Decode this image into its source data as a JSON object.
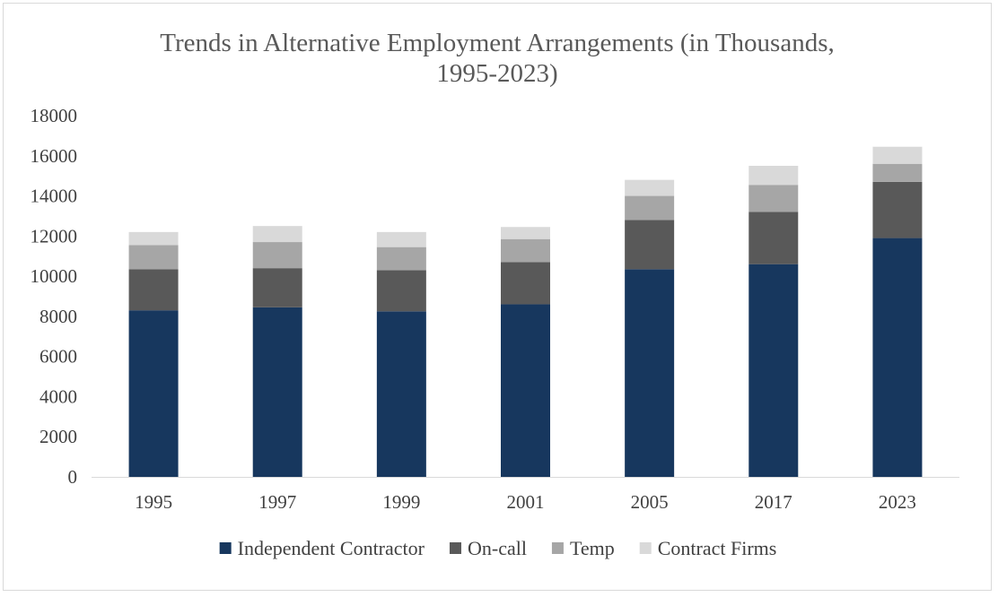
{
  "chart_data": {
    "type": "bar",
    "stacked": true,
    "title": "Trends in Alternative Employment Arrangements (in Thousands, 1995-2023)",
    "title_lines": [
      "Trends in Alternative Employment Arrangements (in Thousands,",
      "1995-2023)"
    ],
    "xlabel": "",
    "ylabel": "",
    "categories": [
      "1995",
      "1997",
      "1999",
      "2001",
      "2005",
      "2017",
      "2023"
    ],
    "ylim": [
      0,
      18000
    ],
    "yticks": [
      0,
      2000,
      4000,
      6000,
      8000,
      10000,
      12000,
      14000,
      16000,
      18000
    ],
    "grid": false,
    "legend_position": "bottom",
    "series": [
      {
        "name": "Independent Contractor",
        "color": "#17375e",
        "values": [
          8300,
          8450,
          8250,
          8600,
          10350,
          10600,
          11900
        ]
      },
      {
        "name": "On-call",
        "color": "#595959",
        "values": [
          2050,
          1950,
          2050,
          2100,
          2450,
          2600,
          2800
        ]
      },
      {
        "name": "Temp",
        "color": "#a6a6a6",
        "values": [
          1200,
          1300,
          1150,
          1150,
          1200,
          1350,
          900
        ]
      },
      {
        "name": "Contract Firms",
        "color": "#d9d9d9",
        "values": [
          650,
          800,
          750,
          600,
          800,
          950,
          850
        ]
      }
    ]
  }
}
